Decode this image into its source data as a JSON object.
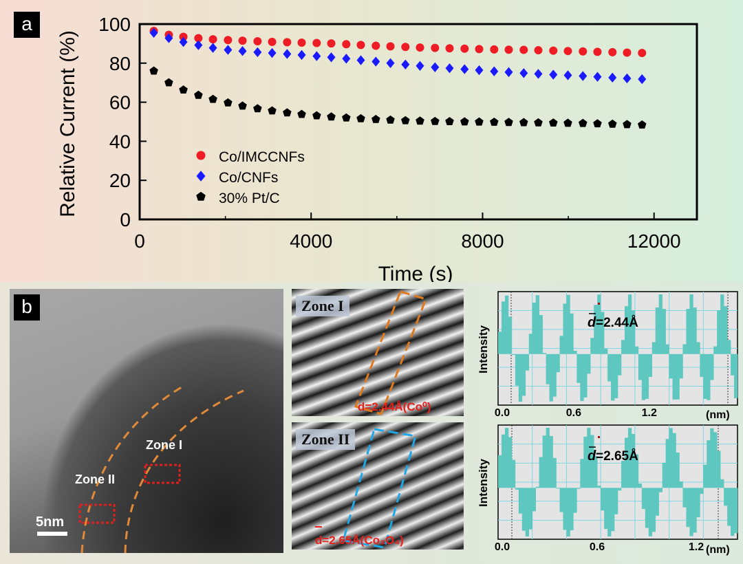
{
  "figure": {
    "panel_a_label": "a",
    "panel_b_label": "b"
  },
  "chart_data": {
    "type": "scatter",
    "xlabel": "Time (s)",
    "ylabel": "Relative Current (%)",
    "xlim": [
      0,
      13000
    ],
    "ylim": [
      0,
      100
    ],
    "xticks": [
      0,
      4000,
      8000,
      12000
    ],
    "yticks": [
      0,
      20,
      40,
      60,
      80,
      100
    ],
    "grid": false,
    "legend_position": "lower-left",
    "series": [
      {
        "name": "Co/IMCCNFs",
        "marker": "circle",
        "color": "#ee1c24",
        "x": [
          330,
          680,
          1020,
          1370,
          1710,
          2060,
          2400,
          2750,
          3090,
          3440,
          3780,
          4130,
          4470,
          4820,
          5160,
          5510,
          5850,
          6200,
          6540,
          6890,
          7230,
          7580,
          7920,
          8270,
          8610,
          8960,
          9300,
          9650,
          9990,
          10340,
          10680,
          11030,
          11370,
          11720
        ],
        "y": [
          96.5,
          94.5,
          93.5,
          92.8,
          92.2,
          91.8,
          91.5,
          91.2,
          90.9,
          90.7,
          90.5,
          90.3,
          90.1,
          89.7,
          89.3,
          88.9,
          88.6,
          88.3,
          88.0,
          87.8,
          87.6,
          87.4,
          87.2,
          87.0,
          86.9,
          86.8,
          86.6,
          86.4,
          86.2,
          86.0,
          85.8,
          85.6,
          85.4,
          85.2
        ]
      },
      {
        "name": "Co/CNFs",
        "marker": "diamond",
        "color": "#1a1aff",
        "x": [
          330,
          680,
          1020,
          1370,
          1710,
          2060,
          2400,
          2750,
          3090,
          3440,
          3780,
          4130,
          4470,
          4820,
          5160,
          5510,
          5850,
          6200,
          6540,
          6890,
          7230,
          7580,
          7920,
          8270,
          8610,
          8960,
          9300,
          9650,
          9990,
          10340,
          10680,
          11030,
          11370,
          11720
        ],
        "y": [
          95.5,
          92.8,
          90.8,
          89.2,
          87.8,
          86.8,
          86.2,
          85.6,
          85.2,
          84.7,
          84.2,
          83.6,
          83.0,
          82.3,
          81.5,
          80.8,
          80.0,
          79.3,
          78.6,
          77.9,
          77.4,
          76.9,
          76.4,
          75.8,
          75.4,
          74.9,
          74.5,
          74.1,
          73.8,
          73.4,
          73.0,
          72.6,
          72.2,
          71.8
        ]
      },
      {
        "name": "30% Pt/C",
        "marker": "pentagon",
        "color": "#000000",
        "x": [
          330,
          680,
          1020,
          1370,
          1710,
          2060,
          2400,
          2750,
          3090,
          3440,
          3780,
          4130,
          4470,
          4820,
          5160,
          5510,
          5850,
          6200,
          6540,
          6890,
          7230,
          7580,
          7920,
          8270,
          8610,
          8960,
          9300,
          9650,
          9990,
          10340,
          10680,
          11030,
          11370,
          11720
        ],
        "y": [
          76.0,
          70.0,
          66.3,
          63.6,
          61.5,
          59.7,
          58.1,
          56.7,
          55.6,
          54.6,
          53.8,
          53.1,
          52.5,
          52.0,
          51.6,
          51.2,
          50.9,
          50.6,
          50.4,
          50.2,
          50.1,
          50.0,
          49.9,
          49.8,
          49.7,
          49.6,
          49.5,
          49.4,
          49.3,
          49.2,
          49.0,
          48.8,
          48.6,
          48.4
        ]
      }
    ]
  },
  "tem_image": {
    "zone_i_label": "Zone I",
    "zone_ii_label": "Zone II",
    "scale_bar_label": "5nm"
  },
  "fringe_images": {
    "zone_i": {
      "title": "Zone I",
      "spacing_label": "d=2.44Å(Co⁰)"
    },
    "zone_ii": {
      "title": "Zone II",
      "spacing_label": "d=2.65Å(Co₃O₄)"
    }
  },
  "line_profiles": {
    "ylabel": "Intensity",
    "xunit": "(nm)",
    "top": {
      "xticks": [
        "0.0",
        "0.6",
        "1.2"
      ],
      "d_label": "d",
      "d_value": "=2.44Å",
      "x_max_nm": 1.9,
      "peaks_nm": [
        0.06,
        0.3,
        0.55,
        0.8,
        1.04,
        1.29,
        1.53,
        1.78
      ]
    },
    "bottom": {
      "xticks": [
        "0.0",
        "0.6",
        "1.2"
      ],
      "d_label": "d",
      "d_value": "=2.65Å",
      "x_max_nm": 1.45,
      "peaks_nm": [
        0.05,
        0.3,
        0.55,
        0.8,
        1.05,
        1.3
      ]
    }
  }
}
